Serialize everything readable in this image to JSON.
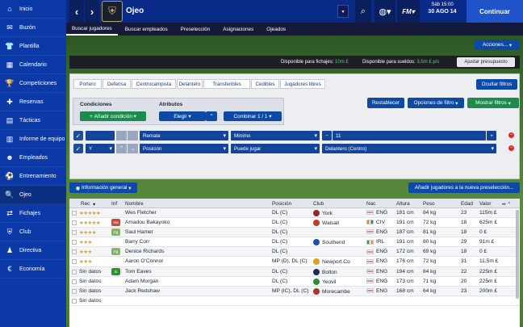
{
  "sidebar": {
    "items": [
      {
        "icon": "home-icon",
        "glyph": "⌂",
        "label": "Inicio"
      },
      {
        "icon": "mail-icon",
        "glyph": "✉",
        "label": "Buzón"
      },
      {
        "icon": "squad-icon",
        "glyph": "👕",
        "label": "Plantilla"
      },
      {
        "icon": "calendar-icon",
        "glyph": "▦",
        "label": "Calendario"
      },
      {
        "icon": "trophy-icon",
        "glyph": "🏆",
        "label": "Competiciones"
      },
      {
        "icon": "reserves-icon",
        "glyph": "✚",
        "label": "Reservas"
      },
      {
        "icon": "tactics-icon",
        "glyph": "▤",
        "label": "Tácticas"
      },
      {
        "icon": "report-icon",
        "glyph": "▥",
        "label": "Informe de equipo"
      },
      {
        "icon": "staff-icon",
        "glyph": "☻",
        "label": "Empleados"
      },
      {
        "icon": "training-icon",
        "glyph": "⚽",
        "label": "Entrenamiento"
      },
      {
        "icon": "scout-icon",
        "glyph": "🔍",
        "label": "Ojeo"
      },
      {
        "icon": "transfers-icon",
        "glyph": "⇄",
        "label": "Fichajes"
      },
      {
        "icon": "club-icon",
        "glyph": "⛨",
        "label": "Club"
      },
      {
        "icon": "board-icon",
        "glyph": "♟",
        "label": "Directiva"
      },
      {
        "icon": "finance-icon",
        "glyph": "€",
        "label": "Economía"
      }
    ],
    "active_index": 10
  },
  "header": {
    "club_name": "Ojeo",
    "date_line1": "Sáb 15:00",
    "date_line2": "30 AGO 14",
    "continue_label": "Continuar"
  },
  "tabs": [
    "Buscar jugadores",
    "Buscar empleados",
    "Preselección",
    "Asignaciones",
    "Ojeados"
  ],
  "actions_label": "Acciones...",
  "budget": {
    "transfer_label": "Disponible para fichajes:",
    "transfer_value": "10m £",
    "wage_label": "Disponible para sueldos:",
    "wage_value": "3,5m £ p/s",
    "adjust_label": "Ajustar presupuesto"
  },
  "filter_tabs": [
    "Portero",
    "Defensa",
    "Centrocampista",
    "Delantero",
    "Transferibles",
    "Cedibles",
    "Jugadores libres"
  ],
  "hide_filters_label": "Ocultar filtros",
  "conditions": {
    "title": "Condiciones",
    "add_label": "Añadir condición",
    "attributes_title": "Atributos",
    "choose_label": "Elegir",
    "combine_label": "Combinar 1 / 1"
  },
  "reset_label": "Restablecer",
  "filter_options_label": "Opciones de filtro",
  "show_filters_label": "Mostrar filtros",
  "filter_rows": [
    {
      "logic": "",
      "field": "Remate",
      "operator": "Mínimo",
      "value": "11"
    },
    {
      "logic": "Y",
      "field": "Posición",
      "operator": "Puede jugar",
      "value": "Delantero (Centro)"
    }
  ],
  "info_label": "Información general",
  "add_shortlist_label": "Añadir jugadores a la nueva preselección...",
  "columns": [
    "Rec",
    "Inf",
    "Nombre",
    "Posición",
    "Club",
    "Nac",
    "Altura",
    "Peso",
    "Edad",
    "Valor"
  ],
  "players": [
    {
      "rec": "★★★★★",
      "inf": "",
      "name": "Wes Fletcher",
      "pos": "DL (C)",
      "club": "York",
      "club_color": "#8a2a2a",
      "nat": "ENG",
      "height": "181 cm",
      "weight": "84 kg",
      "age": "23",
      "value": "115m £"
    },
    {
      "rec": "★★★★★",
      "inf": "Ina",
      "name": "Amadou Bakayoko",
      "pos": "DL (C)",
      "club": "Walsall",
      "club_color": "#c0392b",
      "nat": "CIV",
      "height": "191 cm",
      "weight": "72 kg",
      "age": "18",
      "value": "625m £"
    },
    {
      "rec": "★★★★",
      "inf": "Ag",
      "name": "Saul Hamer",
      "pos": "DL (C)",
      "club": "",
      "club_color": "",
      "nat": "ENG",
      "height": "187 cm",
      "weight": "81 kg",
      "age": "18",
      "value": "0 £"
    },
    {
      "rec": "★★★",
      "inf": "",
      "name": "Barry Corr",
      "pos": "DL (C)",
      "club": "Southend",
      "club_color": "#1f4fa8",
      "nat": "IRL",
      "height": "191 cm",
      "weight": "80 kg",
      "age": "29",
      "value": "91m £"
    },
    {
      "rec": "★★★",
      "inf": "Ag",
      "name": "Denice Richards",
      "pos": "DL (C)",
      "club": "",
      "club_color": "",
      "nat": "ENG",
      "height": "172 cm",
      "weight": "69 kg",
      "age": "18",
      "value": "0 £"
    },
    {
      "rec": "★★★",
      "inf": "",
      "name": "Aaron O'Connor",
      "pos": "MP (D), DL (C)",
      "club": "Newport Co",
      "club_color": "#e0a020",
      "nat": "ENG",
      "height": "176 cm",
      "weight": "72 kg",
      "age": "31",
      "value": "11,5m £"
    },
    {
      "rec": "Sin datos",
      "inf": "In",
      "name": "Tom Eaves",
      "pos": "DL (C)",
      "club": "Bolton",
      "club_color": "#1b2a55",
      "nat": "ENG",
      "height": "194 cm",
      "weight": "84 kg",
      "age": "22",
      "value": "225m £"
    },
    {
      "rec": "Sin datos",
      "inf": "",
      "name": "Adam Morgan",
      "pos": "DL (C)",
      "club": "Yeovil",
      "club_color": "#2e8b2e",
      "nat": "ENG",
      "height": "173 cm",
      "weight": "71 kg",
      "age": "20",
      "value": "225m £"
    },
    {
      "rec": "Sin datos",
      "inf": "",
      "name": "Jack Redshaw",
      "pos": "MP (IC), DL (C)",
      "club": "Morecambe",
      "club_color": "#b03030",
      "nat": "ENG",
      "height": "168 cm",
      "weight": "64 kg",
      "age": "23",
      "value": "200m £"
    },
    {
      "rec": "Sin datos",
      "inf": "",
      "name": "",
      "pos": "",
      "club": "",
      "club_color": "",
      "nat": "",
      "height": "",
      "weight": "",
      "age": "",
      "value": ""
    }
  ],
  "colors": {
    "accent": "#0b3aa8",
    "green": "#1e8b4e",
    "star": "#e5a11a"
  }
}
